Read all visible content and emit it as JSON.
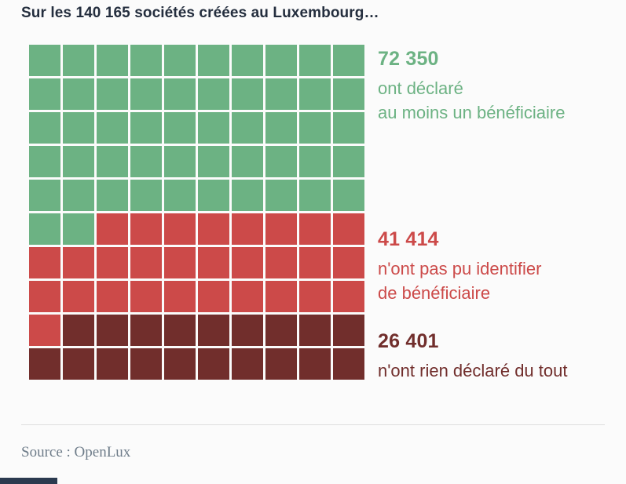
{
  "page": {
    "title": "Sur les 140 165 sociétés créées au Luxembourg…",
    "source": "Source : OpenLux",
    "background": "#fbfbfb",
    "title_color": "#242e3e",
    "source_color": "#6e7c89",
    "accent_bar_color": "#2b3a4f"
  },
  "chart_data": {
    "type": "waffle",
    "title": "Sur les 140 165 sociétés créées au Luxembourg…",
    "total": 140165,
    "grid": {
      "rows": 10,
      "cols": 10,
      "unit": "1 square ≈ 1% of 140 165 companies"
    },
    "legend_position": "right",
    "series": [
      {
        "name": "ont déclaré au moins un bénéficiaire",
        "value": 72350,
        "value_label": "72 350",
        "squares": 52,
        "color": "#6cb283",
        "label_lines": [
          "ont déclaré",
          "au moins un bénéficiaire"
        ]
      },
      {
        "name": "n'ont pas pu identifier de bénéficiaire",
        "value": 41414,
        "value_label": "41 414",
        "squares": 29,
        "color": "#cc4a49",
        "label_lines": [
          "n'ont pas pu identifier",
          "de bénéficiaire"
        ]
      },
      {
        "name": "n'ont rien déclaré du tout",
        "value": 26401,
        "value_label": "26 401",
        "squares": 19,
        "color": "#712e2c",
        "label_lines": [
          "n'ont rien déclaré du tout"
        ]
      }
    ],
    "source": "Source : OpenLux"
  }
}
